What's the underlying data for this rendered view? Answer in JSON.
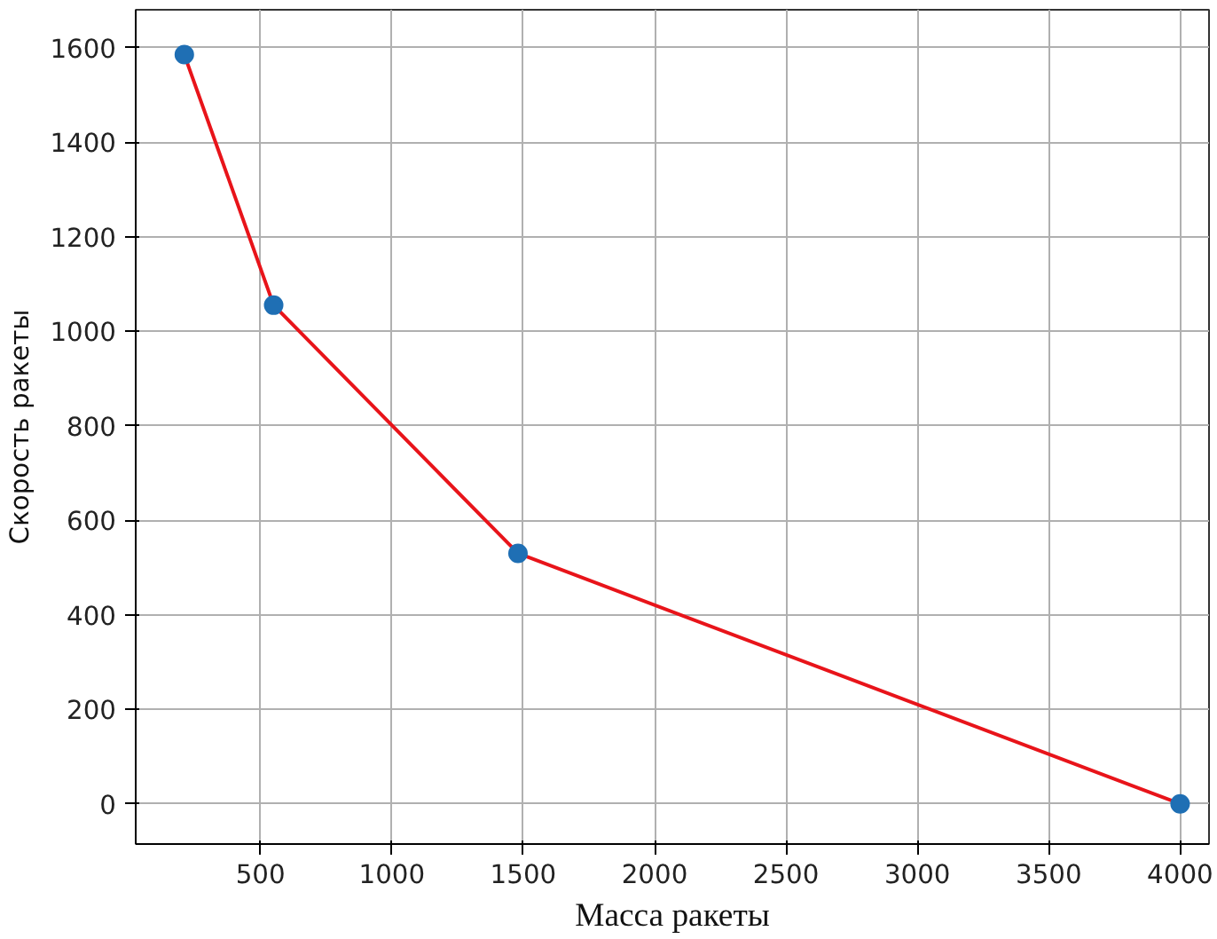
{
  "chart_data": {
    "type": "line",
    "xlabel": "Масса ракеты",
    "ylabel": "Скорость ракеты",
    "x": [
      210,
      550,
      1480,
      4000
    ],
    "series": [
      {
        "color": "#e8141a",
        "values": [
          1585,
          1055,
          530,
          0
        ],
        "marker": "none",
        "line_style": "solid"
      },
      {
        "type": "scatter",
        "color": "#1f6fb4",
        "values": [
          1585,
          1055,
          530,
          0
        ]
      }
    ],
    "xlim": [
      25,
      4110
    ],
    "ylim": [
      -85,
      1680
    ],
    "xticks": [
      500,
      1000,
      1500,
      2000,
      2500,
      3000,
      3500,
      4000
    ],
    "yticks": [
      0,
      200,
      400,
      600,
      800,
      1000,
      1200,
      1400,
      1600
    ],
    "grid": true
  }
}
